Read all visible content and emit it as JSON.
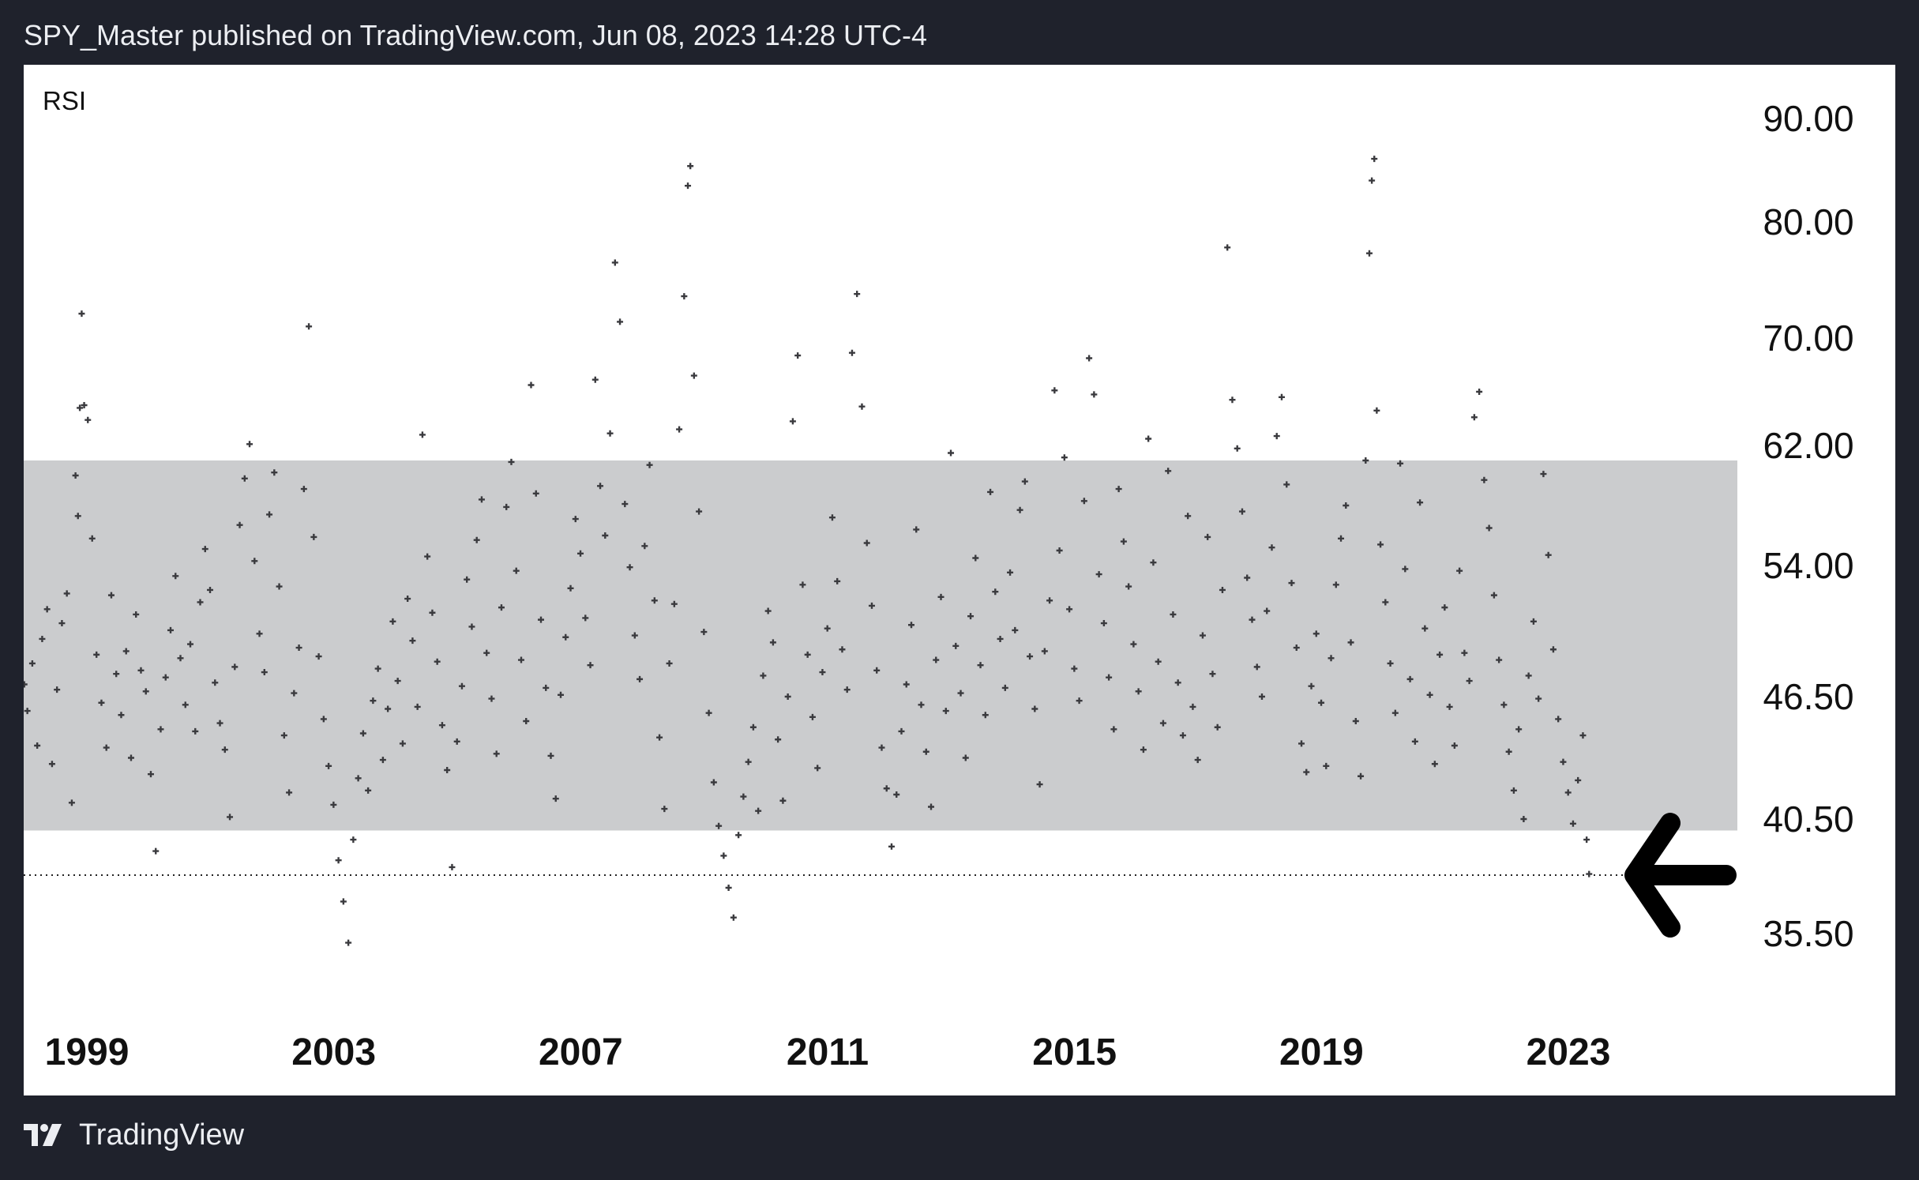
{
  "header": {
    "publish_line": "SPY_Master published on TradingView.com, Jun 08, 2023 14:28 UTC-4"
  },
  "footer": {
    "brand": "TradingView",
    "logo_icon": "tradingview-logo-icon"
  },
  "colors": {
    "page_background": "#1f222c",
    "panel_background": "#ffffff",
    "band_fill": "#cbccce",
    "marker": "#3a3a3e",
    "arrow": "#000000"
  },
  "chart_data": {
    "type": "scatter",
    "title": "RSI",
    "marker": "cross",
    "x_ticks": [
      "1999",
      "2003",
      "2007",
      "2011",
      "2015",
      "2019",
      "2023"
    ],
    "x_tick_values": [
      1999,
      2003,
      2007,
      2011,
      2015,
      2019,
      2023
    ],
    "xlim": [
      1998.0,
      2026.0
    ],
    "y_ticks": [
      "90.00",
      "80.00",
      "70.00",
      "62.00",
      "54.00",
      "46.50",
      "40.50",
      "35.50"
    ],
    "y_tick_values": [
      90.0,
      80.0,
      70.0,
      62.0,
      54.0,
      46.5,
      40.5,
      35.5
    ],
    "ylim": [
      30.0,
      95.0
    ],
    "band": {
      "from": 40.0,
      "to": 61.0
    },
    "reference_line": {
      "value": 38.05,
      "style": "dotted"
    },
    "arrow_annotation": {
      "points_to": 38.05,
      "direction": "left"
    },
    "points": [
      [
        1998.05,
        47.2
      ],
      [
        1998.1,
        45.8
      ],
      [
        1998.18,
        48.4
      ],
      [
        1998.26,
        44.1
      ],
      [
        1998.34,
        49.8
      ],
      [
        1998.42,
        51.5
      ],
      [
        1998.5,
        43.2
      ],
      [
        1998.58,
        46.9
      ],
      [
        1998.66,
        50.7
      ],
      [
        1998.74,
        52.4
      ],
      [
        1998.82,
        41.3
      ],
      [
        1998.88,
        60.0
      ],
      [
        1998.92,
        57.3
      ],
      [
        1998.95,
        64.8
      ],
      [
        1998.98,
        72.1
      ],
      [
        1999.02,
        65.0
      ],
      [
        1999.08,
        63.9
      ],
      [
        1999.15,
        55.8
      ],
      [
        1999.22,
        48.9
      ],
      [
        1999.3,
        46.2
      ],
      [
        1999.38,
        44.0
      ],
      [
        1999.46,
        52.3
      ],
      [
        1999.54,
        47.8
      ],
      [
        1999.62,
        45.6
      ],
      [
        1999.7,
        49.1
      ],
      [
        1999.78,
        43.5
      ],
      [
        1999.86,
        51.2
      ],
      [
        1999.94,
        48.0
      ],
      [
        2000.02,
        46.8
      ],
      [
        2000.1,
        42.7
      ],
      [
        2000.18,
        39.1
      ],
      [
        2000.26,
        44.9
      ],
      [
        2000.34,
        47.6
      ],
      [
        2000.42,
        50.3
      ],
      [
        2000.5,
        53.4
      ],
      [
        2000.58,
        48.7
      ],
      [
        2000.66,
        46.1
      ],
      [
        2000.74,
        49.5
      ],
      [
        2000.82,
        44.8
      ],
      [
        2000.9,
        51.9
      ],
      [
        2000.98,
        55.1
      ],
      [
        2001.06,
        52.6
      ],
      [
        2001.14,
        47.3
      ],
      [
        2001.22,
        45.2
      ],
      [
        2001.3,
        43.9
      ],
      [
        2001.38,
        40.6
      ],
      [
        2001.46,
        48.2
      ],
      [
        2001.54,
        56.7
      ],
      [
        2001.62,
        59.8
      ],
      [
        2001.7,
        62.1
      ],
      [
        2001.78,
        54.3
      ],
      [
        2001.86,
        50.1
      ],
      [
        2001.94,
        47.9
      ],
      [
        2002.02,
        57.4
      ],
      [
        2002.1,
        60.2
      ],
      [
        2002.18,
        52.8
      ],
      [
        2002.26,
        44.6
      ],
      [
        2002.34,
        41.8
      ],
      [
        2002.42,
        46.7
      ],
      [
        2002.5,
        49.3
      ],
      [
        2002.58,
        59.1
      ],
      [
        2002.66,
        71.0
      ],
      [
        2002.74,
        55.9
      ],
      [
        2002.82,
        48.8
      ],
      [
        2002.9,
        45.4
      ],
      [
        2002.98,
        43.1
      ],
      [
        2003.06,
        41.2
      ],
      [
        2003.14,
        38.7
      ],
      [
        2003.22,
        36.9
      ],
      [
        2003.3,
        35.1
      ],
      [
        2003.38,
        39.6
      ],
      [
        2003.46,
        42.5
      ],
      [
        2003.54,
        44.7
      ],
      [
        2003.62,
        41.9
      ],
      [
        2003.7,
        46.3
      ],
      [
        2003.78,
        48.1
      ],
      [
        2003.86,
        43.4
      ],
      [
        2003.94,
        45.9
      ],
      [
        2004.02,
        50.8
      ],
      [
        2004.1,
        47.4
      ],
      [
        2004.18,
        44.2
      ],
      [
        2004.26,
        52.1
      ],
      [
        2004.34,
        49.7
      ],
      [
        2004.42,
        46.0
      ],
      [
        2004.5,
        62.8
      ],
      [
        2004.58,
        54.6
      ],
      [
        2004.66,
        51.3
      ],
      [
        2004.74,
        48.5
      ],
      [
        2004.82,
        45.1
      ],
      [
        2004.9,
        42.9
      ],
      [
        2004.98,
        38.4
      ],
      [
        2005.06,
        44.3
      ],
      [
        2005.14,
        47.1
      ],
      [
        2005.22,
        53.2
      ],
      [
        2005.3,
        50.5
      ],
      [
        2005.38,
        55.7
      ],
      [
        2005.46,
        58.4
      ],
      [
        2005.54,
        49.0
      ],
      [
        2005.62,
        46.4
      ],
      [
        2005.7,
        43.7
      ],
      [
        2005.78,
        51.6
      ],
      [
        2005.86,
        57.9
      ],
      [
        2005.94,
        60.9
      ],
      [
        2006.02,
        53.7
      ],
      [
        2006.1,
        48.6
      ],
      [
        2006.18,
        45.3
      ],
      [
        2006.26,
        66.5
      ],
      [
        2006.34,
        58.8
      ],
      [
        2006.42,
        50.9
      ],
      [
        2006.5,
        47.0
      ],
      [
        2006.58,
        43.6
      ],
      [
        2006.66,
        41.5
      ],
      [
        2006.74,
        46.6
      ],
      [
        2006.82,
        49.9
      ],
      [
        2006.9,
        52.7
      ],
      [
        2006.98,
        57.1
      ],
      [
        2007.06,
        54.8
      ],
      [
        2007.14,
        51.0
      ],
      [
        2007.22,
        48.3
      ],
      [
        2007.3,
        66.9
      ],
      [
        2007.38,
        59.3
      ],
      [
        2007.46,
        56.0
      ],
      [
        2007.54,
        62.9
      ],
      [
        2007.62,
        76.5
      ],
      [
        2007.7,
        71.4
      ],
      [
        2007.78,
        58.1
      ],
      [
        2007.86,
        53.9
      ],
      [
        2007.94,
        50.0
      ],
      [
        2008.02,
        47.5
      ],
      [
        2008.1,
        55.3
      ],
      [
        2008.18,
        60.7
      ],
      [
        2008.26,
        52.0
      ],
      [
        2008.34,
        44.5
      ],
      [
        2008.42,
        41.0
      ],
      [
        2008.5,
        48.4
      ],
      [
        2008.58,
        51.8
      ],
      [
        2008.66,
        63.2
      ],
      [
        2008.74,
        73.6
      ],
      [
        2008.8,
        83.5
      ],
      [
        2008.84,
        85.4
      ],
      [
        2008.9,
        67.2
      ],
      [
        2008.98,
        57.6
      ],
      [
        2009.06,
        50.2
      ],
      [
        2009.14,
        45.7
      ],
      [
        2009.22,
        42.3
      ],
      [
        2009.3,
        40.2
      ],
      [
        2009.38,
        38.9
      ],
      [
        2009.46,
        37.5
      ],
      [
        2009.54,
        36.2
      ],
      [
        2009.62,
        39.8
      ],
      [
        2009.7,
        41.6
      ],
      [
        2009.78,
        43.3
      ],
      [
        2009.86,
        45.0
      ],
      [
        2009.94,
        40.9
      ],
      [
        2010.02,
        47.7
      ],
      [
        2010.1,
        51.4
      ],
      [
        2010.18,
        49.6
      ],
      [
        2010.26,
        44.4
      ],
      [
        2010.34,
        41.4
      ],
      [
        2010.42,
        46.5
      ],
      [
        2010.5,
        63.8
      ],
      [
        2010.58,
        68.7
      ],
      [
        2010.66,
        52.9
      ],
      [
        2010.74,
        48.9
      ],
      [
        2010.82,
        45.5
      ],
      [
        2010.9,
        43.0
      ],
      [
        2010.98,
        47.9
      ],
      [
        2011.06,
        50.4
      ],
      [
        2011.14,
        57.2
      ],
      [
        2011.22,
        53.1
      ],
      [
        2011.3,
        49.2
      ],
      [
        2011.38,
        46.9
      ],
      [
        2011.46,
        68.9
      ],
      [
        2011.54,
        73.8
      ],
      [
        2011.62,
        64.9
      ],
      [
        2011.7,
        55.5
      ],
      [
        2011.78,
        51.7
      ],
      [
        2011.86,
        48.0
      ],
      [
        2011.94,
        44.0
      ],
      [
        2012.02,
        42.0
      ],
      [
        2012.1,
        39.3
      ],
      [
        2012.18,
        41.7
      ],
      [
        2012.26,
        44.8
      ],
      [
        2012.34,
        47.2
      ],
      [
        2012.42,
        50.6
      ],
      [
        2012.5,
        56.4
      ],
      [
        2012.58,
        46.1
      ],
      [
        2012.66,
        43.8
      ],
      [
        2012.74,
        41.1
      ],
      [
        2012.82,
        48.6
      ],
      [
        2012.9,
        52.2
      ],
      [
        2012.98,
        45.8
      ],
      [
        2013.06,
        61.5
      ],
      [
        2013.14,
        49.4
      ],
      [
        2013.22,
        46.7
      ],
      [
        2013.3,
        43.5
      ],
      [
        2013.38,
        51.1
      ],
      [
        2013.46,
        54.5
      ],
      [
        2013.54,
        48.3
      ],
      [
        2013.62,
        45.6
      ],
      [
        2013.7,
        58.9
      ],
      [
        2013.78,
        52.5
      ],
      [
        2013.86,
        49.8
      ],
      [
        2013.94,
        47.0
      ],
      [
        2014.02,
        53.6
      ],
      [
        2014.1,
        50.3
      ],
      [
        2014.18,
        57.7
      ],
      [
        2014.26,
        59.6
      ],
      [
        2014.34,
        48.8
      ],
      [
        2014.42,
        45.9
      ],
      [
        2014.5,
        42.2
      ],
      [
        2014.58,
        49.1
      ],
      [
        2014.66,
        52.0
      ],
      [
        2014.74,
        66.1
      ],
      [
        2014.82,
        55.0
      ],
      [
        2014.9,
        61.2
      ],
      [
        2014.98,
        51.5
      ],
      [
        2015.06,
        48.1
      ],
      [
        2015.14,
        46.3
      ],
      [
        2015.22,
        58.3
      ],
      [
        2015.3,
        68.5
      ],
      [
        2015.38,
        65.8
      ],
      [
        2015.46,
        53.5
      ],
      [
        2015.54,
        50.7
      ],
      [
        2015.62,
        47.6
      ],
      [
        2015.7,
        44.9
      ],
      [
        2015.78,
        59.1
      ],
      [
        2015.86,
        55.6
      ],
      [
        2015.94,
        52.8
      ],
      [
        2016.02,
        49.5
      ],
      [
        2016.1,
        46.8
      ],
      [
        2016.18,
        43.9
      ],
      [
        2016.26,
        62.5
      ],
      [
        2016.34,
        54.2
      ],
      [
        2016.42,
        48.5
      ],
      [
        2016.5,
        45.2
      ],
      [
        2016.58,
        60.3
      ],
      [
        2016.66,
        51.2
      ],
      [
        2016.74,
        47.3
      ],
      [
        2016.82,
        44.6
      ],
      [
        2016.9,
        57.3
      ],
      [
        2016.98,
        46.0
      ],
      [
        2017.06,
        43.4
      ],
      [
        2017.14,
        50.0
      ],
      [
        2017.22,
        55.9
      ],
      [
        2017.3,
        47.8
      ],
      [
        2017.38,
        45.0
      ],
      [
        2017.46,
        52.6
      ],
      [
        2017.54,
        77.8
      ],
      [
        2017.62,
        65.4
      ],
      [
        2017.7,
        61.8
      ],
      [
        2017.78,
        57.6
      ],
      [
        2017.86,
        53.3
      ],
      [
        2017.94,
        50.9
      ],
      [
        2018.02,
        48.2
      ],
      [
        2018.1,
        46.5
      ],
      [
        2018.18,
        51.4
      ],
      [
        2018.26,
        55.2
      ],
      [
        2018.34,
        62.7
      ],
      [
        2018.42,
        65.6
      ],
      [
        2018.5,
        59.4
      ],
      [
        2018.58,
        53.0
      ],
      [
        2018.66,
        49.3
      ],
      [
        2018.74,
        44.2
      ],
      [
        2018.82,
        42.8
      ],
      [
        2018.9,
        47.1
      ],
      [
        2018.98,
        50.1
      ],
      [
        2019.06,
        46.2
      ],
      [
        2019.14,
        43.1
      ],
      [
        2019.22,
        48.7
      ],
      [
        2019.3,
        52.9
      ],
      [
        2019.38,
        55.8
      ],
      [
        2019.46,
        58.0
      ],
      [
        2019.54,
        49.6
      ],
      [
        2019.62,
        45.3
      ],
      [
        2019.7,
        42.6
      ],
      [
        2019.78,
        61.0
      ],
      [
        2019.84,
        77.3
      ],
      [
        2019.88,
        84.0
      ],
      [
        2019.92,
        86.1
      ],
      [
        2019.96,
        64.6
      ],
      [
        2020.02,
        55.4
      ],
      [
        2020.1,
        51.9
      ],
      [
        2020.18,
        48.4
      ],
      [
        2020.26,
        45.7
      ],
      [
        2020.34,
        60.8
      ],
      [
        2020.42,
        53.8
      ],
      [
        2020.5,
        47.5
      ],
      [
        2020.58,
        44.3
      ],
      [
        2020.66,
        58.2
      ],
      [
        2020.74,
        50.4
      ],
      [
        2020.82,
        46.6
      ],
      [
        2020.9,
        43.2
      ],
      [
        2020.98,
        48.9
      ],
      [
        2021.06,
        51.6
      ],
      [
        2021.14,
        46.0
      ],
      [
        2021.22,
        44.1
      ],
      [
        2021.3,
        53.7
      ],
      [
        2021.38,
        49.0
      ],
      [
        2021.46,
        47.4
      ],
      [
        2021.54,
        64.1
      ],
      [
        2021.62,
        66.0
      ],
      [
        2021.7,
        59.7
      ],
      [
        2021.78,
        56.5
      ],
      [
        2021.86,
        52.3
      ],
      [
        2021.94,
        48.6
      ],
      [
        2022.02,
        46.1
      ],
      [
        2022.1,
        43.8
      ],
      [
        2022.18,
        41.9
      ],
      [
        2022.26,
        44.9
      ],
      [
        2022.34,
        40.5
      ],
      [
        2022.42,
        47.7
      ],
      [
        2022.5,
        50.8
      ],
      [
        2022.58,
        46.4
      ],
      [
        2022.66,
        60.1
      ],
      [
        2022.74,
        54.7
      ],
      [
        2022.82,
        49.2
      ],
      [
        2022.9,
        45.4
      ],
      [
        2022.98,
        43.3
      ],
      [
        2023.06,
        41.8
      ],
      [
        2023.14,
        40.3
      ],
      [
        2023.22,
        42.4
      ],
      [
        2023.3,
        44.6
      ],
      [
        2023.36,
        39.6
      ],
      [
        2023.4,
        38.1
      ]
    ]
  }
}
